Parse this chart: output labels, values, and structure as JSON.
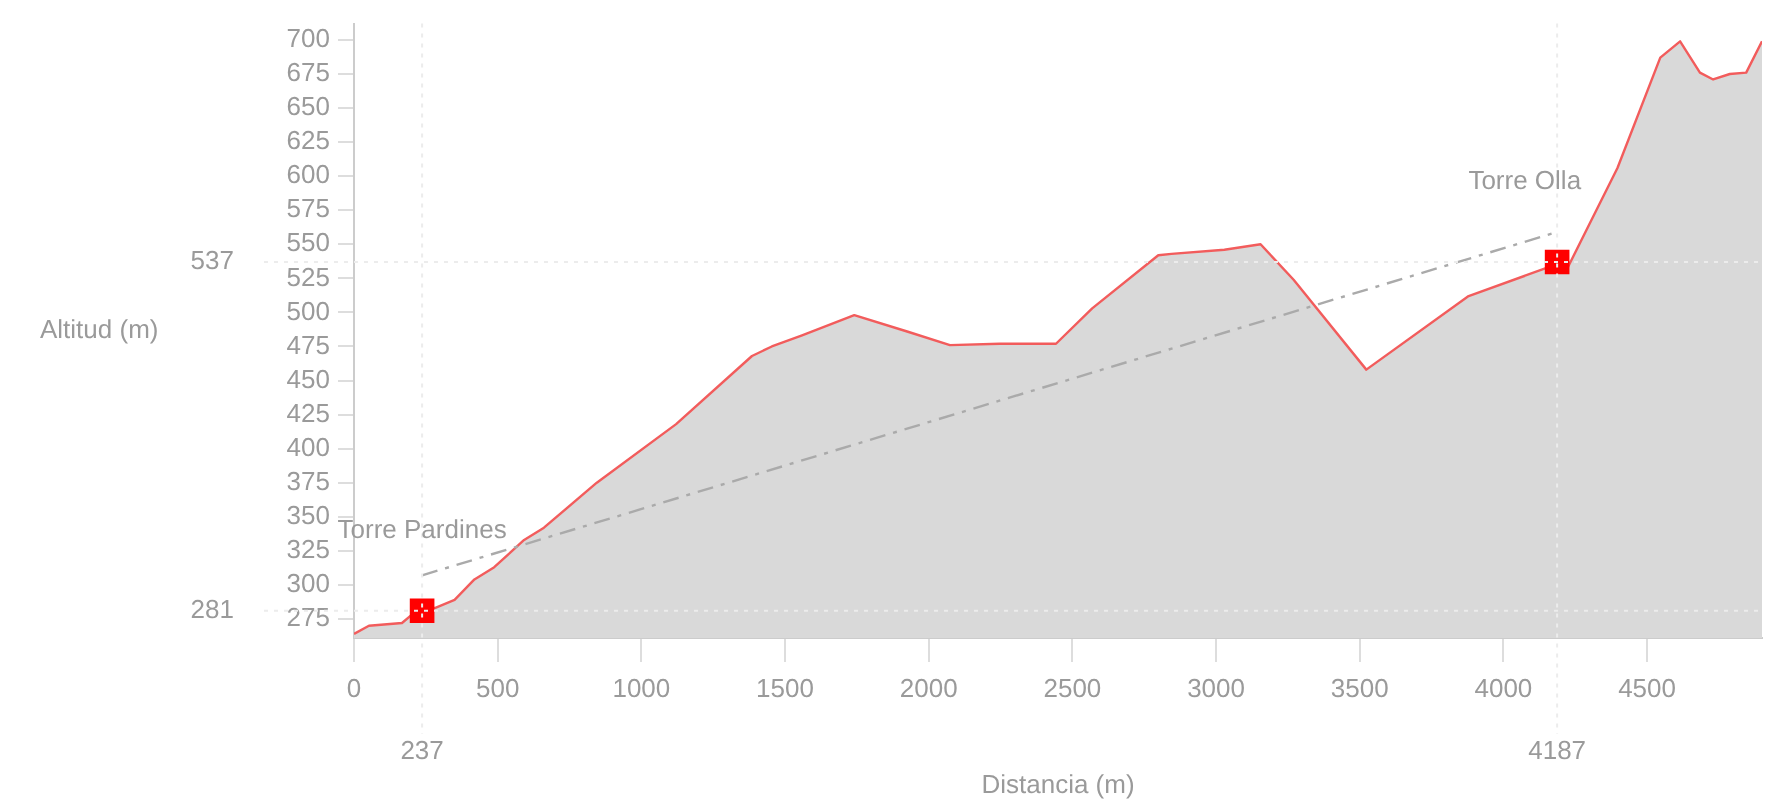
{
  "chart_data": {
    "type": "area",
    "xlabel": "Distancia (m)",
    "ylabel": "Altitud (m)",
    "xlim": [
      0,
      4900
    ],
    "ylim": [
      261,
      712
    ],
    "xticks": [
      0,
      500,
      1000,
      1500,
      2000,
      2500,
      3000,
      3500,
      4000,
      4500
    ],
    "yticks": [
      275,
      300,
      325,
      350,
      375,
      400,
      425,
      450,
      475,
      500,
      525,
      550,
      575,
      600,
      625,
      650,
      675,
      700
    ],
    "grid": false,
    "legend": false,
    "series": [
      {
        "color": "#f25c5c",
        "x": [
          0,
          52,
          167,
          212,
          281,
          350,
          419,
          488,
          592,
          661,
          845,
          1121,
          1385,
          1454,
          1557,
          1741,
          1925,
          2074,
          2247,
          2443,
          2569,
          2799,
          2845,
          3029,
          3155,
          3270,
          3523,
          3879,
          4155,
          4224,
          4397,
          4546,
          4615,
          4684,
          4730,
          4788,
          4845,
          4900
        ],
        "values": [
          264,
          270,
          272,
          280,
          283,
          289,
          304,
          313,
          333,
          342,
          375,
          418,
          468,
          475,
          483,
          498,
          486,
          476,
          477,
          477,
          503,
          542,
          543,
          546,
          550,
          524,
          458,
          512,
          533,
          533,
          606,
          687,
          699,
          676,
          671,
          675,
          676,
          699
        ]
      },
      {
        "type": "line",
        "color": "#aaaaaa",
        "line_style": "dashed",
        "marker": "none",
        "x": [
          237,
          4187
        ],
        "values": [
          307,
          559
        ]
      },
      {
        "type": "scatter",
        "color": "#ff0000",
        "marker": "square",
        "x": [
          237,
          4187
        ],
        "values": [
          281,
          537
        ]
      }
    ],
    "ref_lines": [
      {
        "axis": "y",
        "value": 281,
        "label": "281"
      },
      {
        "axis": "y",
        "value": 537,
        "label": "537"
      },
      {
        "axis": "x",
        "value": 237,
        "label": "237"
      },
      {
        "axis": "x",
        "value": 4187,
        "label": "4187"
      }
    ],
    "annotations": [
      {
        "text": "Torre Pardines",
        "x": 237,
        "y": 281
      },
      {
        "text": "Torre Olla",
        "x": 4187,
        "y": 537
      }
    ]
  }
}
